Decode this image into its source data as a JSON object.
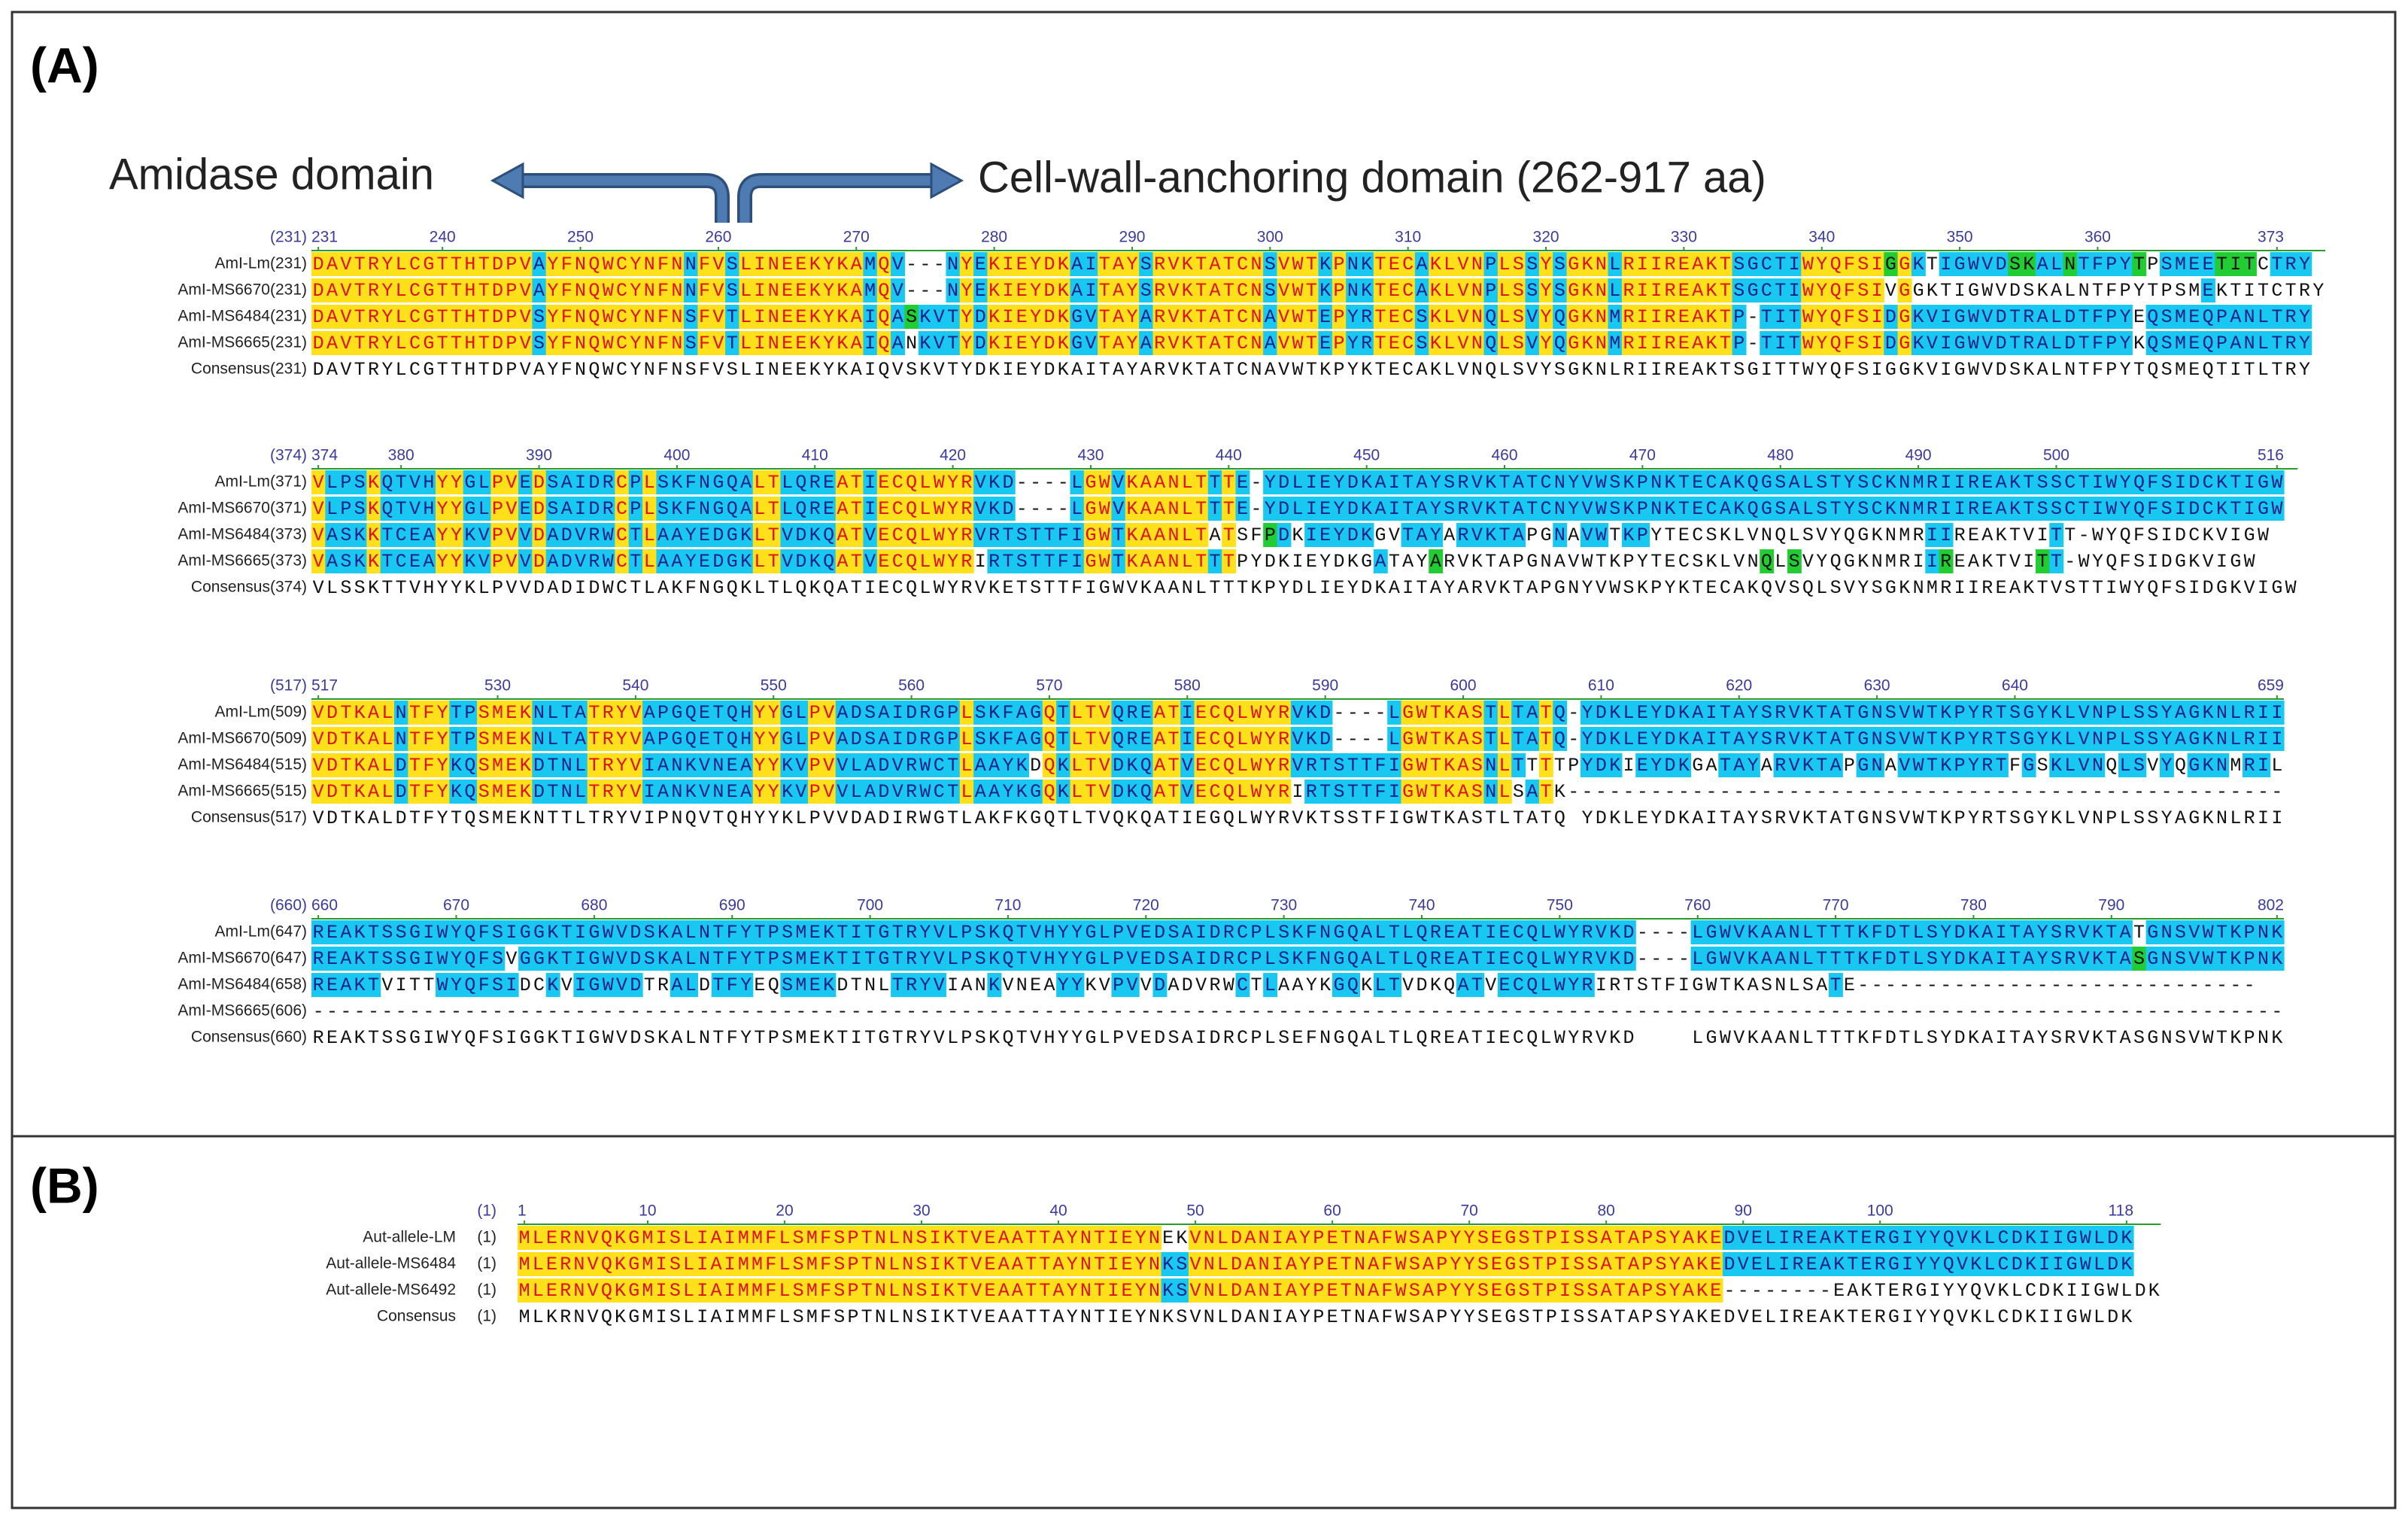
{
  "panel_a": {
    "label": "(A)",
    "annotations": {
      "left": "Amidase domain",
      "right": "Cell-wall-anchoring domain (262-917 aa)"
    },
    "blocks": [
      {
        "ruler_label": "(231)",
        "ticks": [
          231,
          240,
          250,
          260,
          270,
          280,
          290,
          300,
          310,
          320,
          330,
          340,
          350,
          360,
          373
        ],
        "rows": [
          {
            "name": "AmI-Lm(231)",
            "seq": "DAVTRYLCGTTHTDPVAYFNQWCYNFNNFVSLINEEKYKAMQV---NYEKIEYDKAITAYSRVKTATCNSVWTKPNKTECAKLVNPLSSYSGKNLRIIREAKTSGCTIWYQFSIGGKTIGWVDSKALNTFPYTPSMEETITCTRY"
          },
          {
            "name": "AmI-MS6670(231)",
            "seq": "DAVTRYLCGTTHTDPVAYFNQWCYNFNNFVSLINEEKYKAMQV---NYEKIEYDKAITAYSRVKTATCNSVWTKPNKTECAKLVNPLSSYSGKNLRIIREAKTSGCTIWYQFSIVGGKTIGWVDSKALNTFPYTPSMEKTITCTRY"
          },
          {
            "name": "AmI-MS6484(231)",
            "seq": "DAVTRYLCGTTHTDPVSYFNQWCYNFNSFVTLINEEKYKAIQASKVTYDKIEYDKGVTAYARVKTATCNAVWTEPYRTECSKLVNQLSVYQGKNMRIIREAKTP-TITWYQFSIDGKVIGWVDTRALDTFPYEQSMEQPANLTRY"
          },
          {
            "name": "AmI-MS6665(231)",
            "seq": "DAVTRYLCGTTHTDPVSYFNQWCYNFNSFVTLINEEKYKAIQANKVTYDKIEYDKGVTAYARVKTATCNAVWTEPYRTECSKLVNQLSVYQGKNMRIIREAKTP-TITWYQFSIDGKVIGWVDTRALDTFPYKQSMEQPANLTRY"
          },
          {
            "name": "Consensus(231)",
            "seq": "DAVTRYLCGTTHTDPVAYFNQWCYNFNSFVSLINEEKYKAIQVSKVTYDKIEYDKAITAYARVKTATCNAVWTKPYKTECAKLVNQLSVYSGKNLRIIREAKTSGITTWYQFSIGGKVIGWVDSKALNTFPYTQSMEQTITLTRY"
          }
        ]
      },
      {
        "ruler_label": "(374)",
        "ticks": [
          374,
          380,
          390,
          400,
          410,
          420,
          430,
          440,
          450,
          460,
          470,
          480,
          490,
          500,
          516
        ],
        "rows": [
          {
            "name": "AmI-Lm(371)",
            "seq": "VLPSKQTVHYYGLPVEDSAIDRCPLSKFNGQALTLQREATIECQLWYRVKD----LGWVKAANLTTTE-YDLIEYDKAITAYSRVKTATCNYVWSKPNKTECAKQGSALSTYSCKNMRIIREAKTSSCTIWYQFSIDCKTIGW"
          },
          {
            "name": "AmI-MS6670(371)",
            "seq": "VLPSKQTVHYYGLPVEDSAIDRCPLSKFNGQALTLQREATIECQLWYRVKD----LGWVKAANLTTTE-YDLIEYDKAITAYSRVKTATCNYVWSKPNKTECAKQGSALSTYSCKNMRIIREAKTSSCTIWYQFSIDCKTIGW"
          },
          {
            "name": "AmI-MS6484(373)",
            "seq": "VASKKTCEAYYKVPVVDADVRWCTLAAYEDGKLTVDKQATVECQLWYRVRTSTTFIGWTKAANLTATSFPDKIEYDKGVTAYARVKTAPGNAVWTKPYTECSKLVNQLSVYQGKNMRIIREAKTVITT-WYQFSIDCKVIGW"
          },
          {
            "name": "AmI-MS6665(373)",
            "seq": "VASKKTCEAYYKVPVVDADVRWCTLAAYEDGKLTVDKQATVECQLWYRIRTSTTFIGWTKAANLTTTPYDKIEYDKGATAYARVKTAPGNAVWTKPYTECSKLVNQLSVYQGKNMRIIREAKTVITT-WYQFSIDGKVIGW"
          },
          {
            "name": "Consensus(374)",
            "seq": "VLSSKTTVHYYKLPVVDADIDWCTLAKFNGQKLTLQKQATIECQLWYRVKETSTTFIGWVKAANLTTTKPYDLIEYDKAITAYARVKTAPGNYVWSKPYKTECAKQVSQLSVYSGKNMRIIREAKTVSTTIWYQFSIDGKVIGW"
          }
        ]
      },
      {
        "ruler_label": "(517)",
        "ticks": [
          517,
          530,
          540,
          550,
          560,
          570,
          580,
          590,
          600,
          610,
          620,
          630,
          640,
          659
        ],
        "rows": [
          {
            "name": "AmI-Lm(509)",
            "seq": "VDTKALNTFYTPSMEKNLTATRYVAPGQETQHYYGLPVADSAIDRGPLSKFAGQTLTVQREATIECQLWYRVKD----LGWTKASTLTATQ-YDKLEYDKAITAYSRVKTATGNSVWTKPYRTSGYKLVNPLSSYAGKNLRII"
          },
          {
            "name": "AmI-MS6670(509)",
            "seq": "VDTKALNTFYTPSMEKNLTATRYVAPGQETQHYYGLPVADSAIDRGPLSKFAGQTLTVQREATIECQLWYRVKD----LGWTKASTLTATQ-YDKLEYDKAITAYSRVKTATGNSVWTKPYRTSGYKLVNPLSSYAGKNLRII"
          },
          {
            "name": "AmI-MS6484(515)",
            "seq": "VDTKALDTFYKQSMEKDTNLTRYVIANKVNEAYYKVPVVLADVRWCTLAAYKDQKLTVDKQATVECQLWYRVRTSTTFIGWTKASNLTTTTPYDKIEYDKGATAYARVKTAPGNAVWTKPYRTFGSKLVNQLSVYQGKNMRIL"
          },
          {
            "name": "AmI-MS6665(515)",
            "seq": "VDTKALDTFYKQSMEKDTNLTRYVIANKVNEAYYKVPVVLADVRWCTLAAYKGQKLTVDKQATVECQLWYRIRTSTTFIGWTKASNLSATK----------------------------------------------------"
          },
          {
            "name": "Consensus(517)",
            "seq": "VDTKALDTFYTQSMEKNTTLTRYVIPNQVTQHYYKLPVVDADIRWGTLAKFKGQTLTVQKQATIEGQLWYRVKTSSTFIGWTKASTLTATQ YDKLEYDKAITAYSRVKTATGNSVWTKPYRTSGYKLVNPLSSYAGKNLRII"
          }
        ]
      },
      {
        "ruler_label": "(660)",
        "ticks": [
          660,
          670,
          680,
          690,
          700,
          710,
          720,
          730,
          740,
          750,
          760,
          770,
          780,
          790,
          802
        ],
        "rows": [
          {
            "name": "AmI-Lm(647)",
            "seq": "REAKTSSGIWYQFSIGGKTIGWVDSKALNTFYTPSMEKTITGTRYVLPSKQTVHYYGLPVEDSAIDRCPLSKFNGQALTLQREATIECQLWYRVKD----LGWVKAANLTTTKFDTLSYDKAITAYSRVKTATGNSVWTKPNK"
          },
          {
            "name": "AmI-MS6670(647)",
            "seq": "REAKTSSGIWYQFSVGGKTIGWVDSKALNTFYTPSMEKTITGTRYVLPSKQTVHYYGLPVEDSAIDRCPLSKFNGQALTLQREATIECQLWYRVKD----LGWVKAANLTTTKFDTLSYDKAITAYSRVKTASGNSVWTKPNK"
          },
          {
            "name": "AmI-MS6484(658)",
            "seq": "REAKTVITTWYQFSIDCKVIGWVDTRALDTFYEQSMEKDTNLTRYVIANKVNEAYYKVPVVDADVRWCTLAAYKGQKLTVDKQATVECQLWYRIRTSTFIGWTKASNLSATE-----------------------------"
          },
          {
            "name": "AmI-MS6665(606)",
            "seq": "-----------------------------------------------------------------------------------------------------------------------------------------------"
          },
          {
            "name": "Consensus(660)",
            "seq": "REAKTSSGIWYQFSIGGKTIGWVDSKALNTFYTPSMEKTITGTRYVLPSKQTVHYYGLPVEDSAIDRCPLSEFNGQALTLQREATIECQLWYRVKD    LGWVKAANLTTTKFDTLSYDKAITAYSRVKTASGNSVWTKPNK"
          }
        ]
      }
    ]
  },
  "panel_b": {
    "label": "(B)",
    "ruler_label": "(1)",
    "ticks": [
      1,
      10,
      20,
      30,
      40,
      50,
      60,
      70,
      80,
      90,
      100,
      118
    ],
    "rows": [
      {
        "name": "Aut-allele-LM",
        "num": "(1)",
        "seq": "MLERNVQKGMISLIAIMMFLSMFSPTNLNSIKTVEAATTAYNTIEYNEKVNLDANIAYPETNAFWSAPYYSEGSTPISSATAPSYAKEDVELIREAKTERGIYYQVKLCDKIIGWLDK"
      },
      {
        "name": "Aut-allele-MS6484",
        "num": "(1)",
        "seq": "MLERNVQKGMISLIAIMMFLSMFSPTNLNSIKTVEAATTAYNTIEYNKSVNLDANIAYPETNAFWSAPYYSEGSTPISSATAPSYAKEDVELIREAKTERGIYYQVKLCDKIIGWLDK"
      },
      {
        "name": "Aut-allele-MS6492",
        "num": "(1)",
        "seq": "MLERNVQKGMISLIAIMMFLSMFSPTNLNSIKTVEAATTAYNTIEYNKSVNLDANIAYPETNAFWSAPYYSEGSTPISSATAPSYAKE--------EAKTERGIYYQVKLCDKIIGWLDK"
      },
      {
        "name": "Consensus",
        "num": "(1)",
        "seq": "MLKRNVQKGMISLIAIMMFLSMFSPTNLNSIKTVEAATTAYNTIEYNKSVNLDANIAYPETNAFWSAPYYSEGSTPISSATAPSYAKEDVELIREAKTERGIYYQVKLCDKIIGWLDK"
      }
    ]
  }
}
